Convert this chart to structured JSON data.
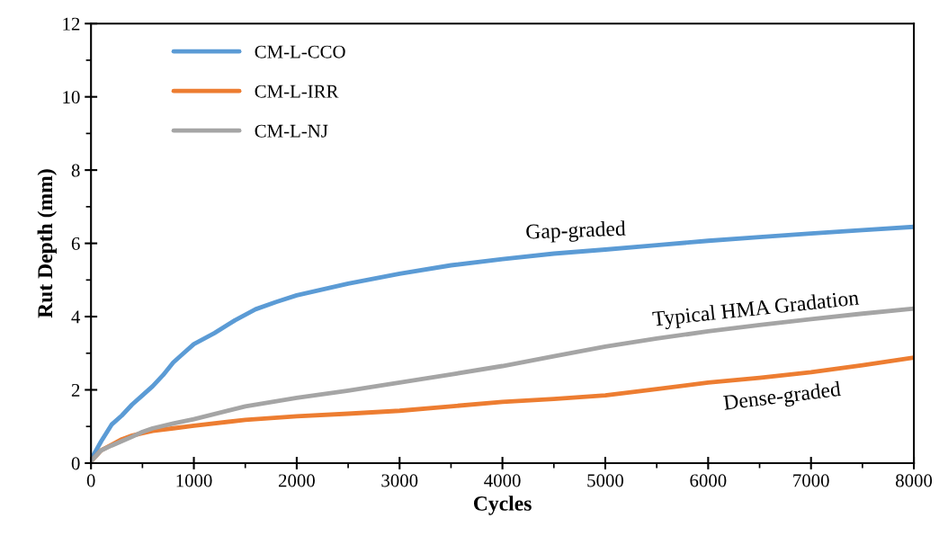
{
  "chart_data": {
    "type": "line",
    "xlabel": "Cycles",
    "ylabel": "Rut Depth (mm)",
    "xlim": [
      0,
      8000
    ],
    "xticks": [
      0,
      1000,
      2000,
      3000,
      4000,
      5000,
      6000,
      7000,
      8000
    ],
    "ylim": [
      0,
      12
    ],
    "yticks": [
      0,
      2,
      4,
      6,
      8,
      10,
      12
    ],
    "grid": false,
    "legend": "top left",
    "marker": "none",
    "line_style": "solid",
    "series": [
      {
        "name": "CM-L-CCO",
        "color": "#5b9bd5",
        "x": [
          0,
          100,
          200,
          300,
          400,
          500,
          600,
          700,
          800,
          900,
          1000,
          1200,
          1400,
          1600,
          1800,
          2000,
          2500,
          3000,
          3500,
          4000,
          4500,
          5000,
          5500,
          6000,
          6500,
          7000,
          7500,
          8000
        ],
        "values": [
          0.1,
          0.6,
          1.05,
          1.3,
          1.6,
          1.85,
          2.1,
          2.4,
          2.75,
          3.0,
          3.25,
          3.55,
          3.9,
          4.2,
          4.4,
          4.58,
          4.9,
          5.17,
          5.4,
          5.57,
          5.72,
          5.83,
          5.95,
          6.07,
          6.17,
          6.27,
          6.36,
          6.45
        ]
      },
      {
        "name": "CM-L-IRR",
        "color": "#ed7d31",
        "x": [
          0,
          100,
          200,
          300,
          400,
          500,
          600,
          800,
          1000,
          1500,
          2000,
          2500,
          3000,
          3500,
          4000,
          4500,
          5000,
          5500,
          6000,
          6500,
          7000,
          7500,
          8000
        ],
        "values": [
          0.05,
          0.35,
          0.5,
          0.65,
          0.75,
          0.82,
          0.88,
          0.95,
          1.02,
          1.18,
          1.28,
          1.35,
          1.43,
          1.55,
          1.67,
          1.75,
          1.85,
          2.02,
          2.2,
          2.33,
          2.48,
          2.67,
          2.88
        ]
      },
      {
        "name": "CM-L-NJ",
        "color": "#a5a5a5",
        "x": [
          0,
          100,
          200,
          300,
          400,
          500,
          600,
          800,
          1000,
          1500,
          2000,
          2500,
          3000,
          3500,
          4000,
          4500,
          5000,
          5500,
          6000,
          6500,
          7000,
          7500,
          8000
        ],
        "values": [
          0.05,
          0.35,
          0.48,
          0.6,
          0.72,
          0.85,
          0.95,
          1.08,
          1.2,
          1.55,
          1.78,
          1.98,
          2.2,
          2.42,
          2.65,
          2.92,
          3.18,
          3.4,
          3.6,
          3.77,
          3.93,
          4.08,
          4.22
        ]
      }
    ],
    "annotations": [
      "Gap-graded",
      "Typical HMA Gradation",
      "Dense-graded"
    ]
  }
}
